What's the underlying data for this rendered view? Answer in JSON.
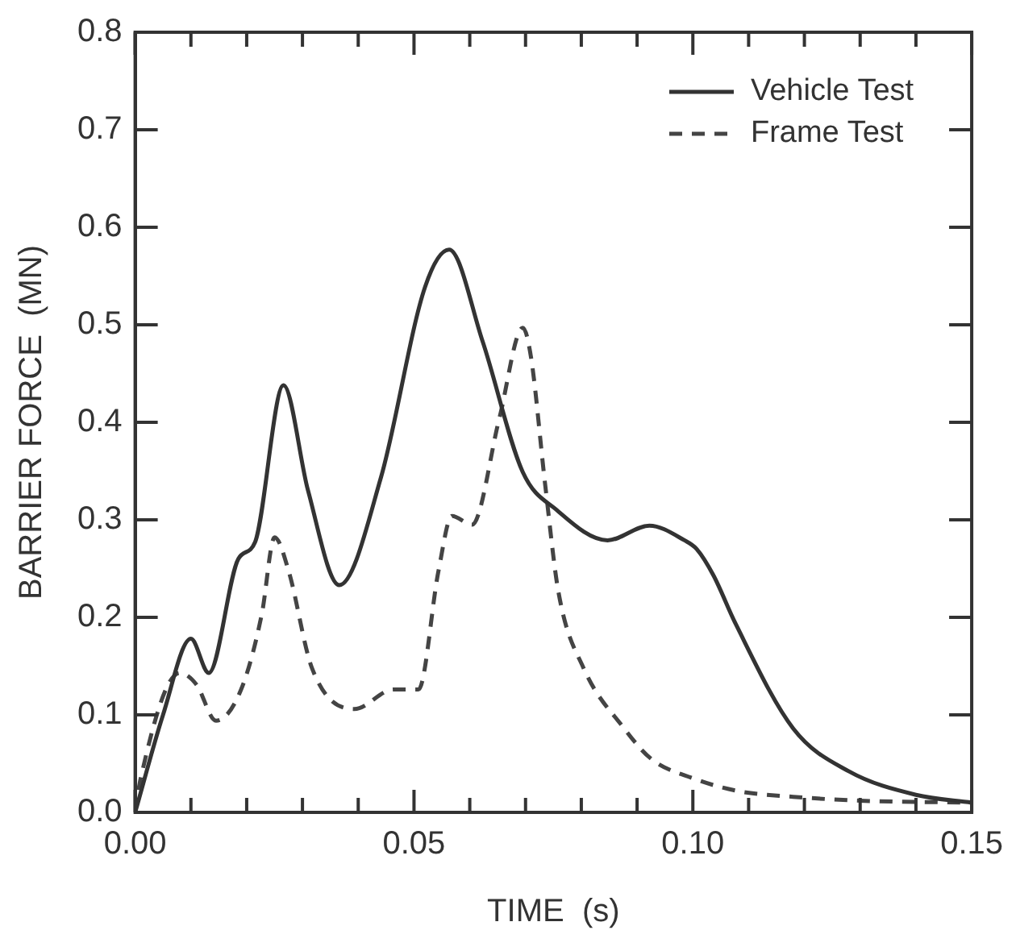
{
  "chart_data": {
    "type": "line",
    "xlabel": "TIME  (s)",
    "ylabel": "BARRIER FORCE  (MN)",
    "xlim": [
      0,
      0.15
    ],
    "ylim": [
      0,
      0.8
    ],
    "xticks": [
      {
        "value": 0,
        "label": "0.00"
      },
      {
        "value": 0.01,
        "label": null
      },
      {
        "value": 0.02,
        "label": null
      },
      {
        "value": 0.03,
        "label": null
      },
      {
        "value": 0.04,
        "label": null
      },
      {
        "value": 0.05,
        "label": "0.05"
      },
      {
        "value": 0.06,
        "label": null
      },
      {
        "value": 0.07,
        "label": null
      },
      {
        "value": 0.08,
        "label": null
      },
      {
        "value": 0.09,
        "label": null
      },
      {
        "value": 0.1,
        "label": "0.10"
      },
      {
        "value": 0.11,
        "label": null
      },
      {
        "value": 0.12,
        "label": null
      },
      {
        "value": 0.13,
        "label": null
      },
      {
        "value": 0.14,
        "label": null
      },
      {
        "value": 0.15,
        "label": "0.15"
      }
    ],
    "yticks": [
      {
        "value": 0,
        "label": "0.0"
      },
      {
        "value": 0.1,
        "label": "0.1"
      },
      {
        "value": 0.2,
        "label": "0.2"
      },
      {
        "value": 0.3,
        "label": "0.3"
      },
      {
        "value": 0.4,
        "label": "0.4"
      },
      {
        "value": 0.5,
        "label": "0.5"
      },
      {
        "value": 0.6,
        "label": "0.6"
      },
      {
        "value": 0.7,
        "label": "0.7"
      },
      {
        "value": 0.8,
        "label": "0.8"
      }
    ],
    "grid": false,
    "legend": "top right",
    "marker": "none",
    "series": [
      {
        "name": "Vehicle Test",
        "color": "#333333",
        "line_style": "solid",
        "x": [
          0,
          0.005,
          0.01,
          0.0132,
          0.0185,
          0.0215,
          0.0266,
          0.031,
          0.0366,
          0.0441,
          0.052,
          0.0563,
          0.0623,
          0.0695,
          0.0756,
          0.0847,
          0.0922,
          0.0985,
          0.1007,
          0.1037,
          0.1077,
          0.118,
          0.128,
          0.14,
          0.15
        ],
        "values": [
          0,
          0.1,
          0.178,
          0.143,
          0.26,
          0.277,
          0.438,
          0.33,
          0.233,
          0.344,
          0.539,
          0.577,
          0.483,
          0.349,
          0.31,
          0.279,
          0.294,
          0.279,
          0.27,
          0.243,
          0.193,
          0.086,
          0.042,
          0.018,
          0.01
        ]
      },
      {
        "name": "Frame Test",
        "color": "#444444",
        "line_style": "dashed",
        "x": [
          0,
          0.001,
          0.008,
          0.011,
          0.0145,
          0.019,
          0.0227,
          0.025,
          0.0275,
          0.0317,
          0.0393,
          0.0463,
          0.0508,
          0.0544,
          0.0568,
          0.0604,
          0.0653,
          0.0695,
          0.071,
          0.0735,
          0.0759,
          0.0804,
          0.0877,
          0.0925,
          0.1,
          0.108,
          0.118,
          0.13,
          0.15
        ],
        "values": [
          0,
          0.035,
          0.143,
          0.131,
          0.094,
          0.126,
          0.203,
          0.282,
          0.248,
          0.148,
          0.106,
          0.126,
          0.126,
          0.248,
          0.304,
          0.295,
          0.404,
          0.497,
          0.466,
          0.337,
          0.226,
          0.148,
          0.086,
          0.055,
          0.035,
          0.022,
          0.016,
          0.012,
          0.01
        ]
      }
    ]
  }
}
